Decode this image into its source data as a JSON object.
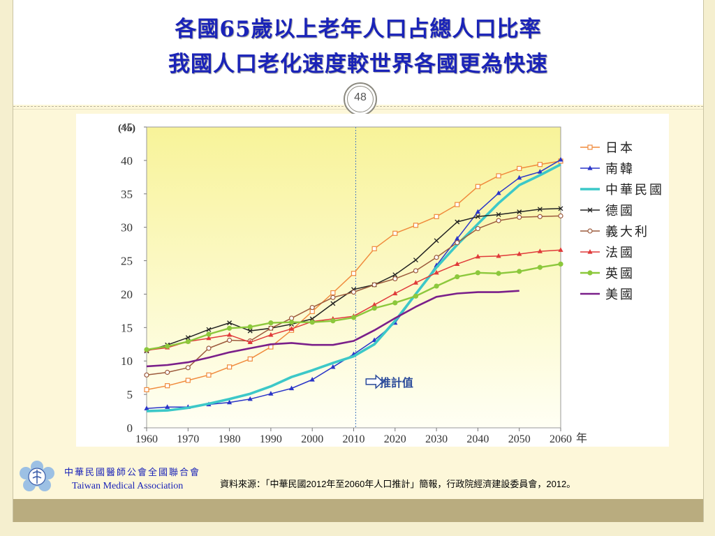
{
  "slide": {
    "title_line1": "各國65歲以上老年人口占總人口比率",
    "title_line2": "我國人口老化速度較世界各國更為快速",
    "page_number": "48"
  },
  "footer": {
    "org_zh": "中華民國醫師公會全國聯合會",
    "org_en": "Taiwan Medical Association",
    "source": "資料來源：「中華民國2012年至2060年人口推計」簡報，行政院經濟建設委員會，2012。"
  },
  "colors": {
    "title": "#1a23b8",
    "plot_gradient_top": "#f8f399",
    "plot_gradient_bottom": "#fffff4",
    "projection_line": "#4a7cc0",
    "footer_band": "#b9ac7f"
  },
  "chart_data": {
    "type": "line",
    "y_unit_label": "(%)",
    "x_unit_label": "年",
    "xlim": [
      1960,
      2060
    ],
    "ylim": [
      0,
      45
    ],
    "x_ticks": [
      1960,
      1970,
      1980,
      1990,
      2000,
      2010,
      2020,
      2030,
      2040,
      2050,
      2060
    ],
    "y_ticks": [
      0,
      5,
      10,
      15,
      20,
      25,
      30,
      35,
      40,
      45
    ],
    "grid": false,
    "legend_position": "right",
    "projection_start_year": 2010.5,
    "projection_label": "推計值",
    "series": [
      {
        "name": "日本",
        "color": "#f08a3c",
        "marker": "square",
        "x": [
          1960,
          1965,
          1970,
          1975,
          1980,
          1985,
          1990,
          1995,
          2000,
          2005,
          2010,
          2015,
          2020,
          2025,
          2030,
          2035,
          2040,
          2045,
          2050,
          2055,
          2060
        ],
        "y": [
          5.7,
          6.3,
          7.1,
          7.9,
          9.1,
          10.3,
          12.1,
          14.6,
          17.4,
          20.2,
          23.1,
          26.8,
          29.1,
          30.3,
          31.6,
          33.4,
          36.1,
          37.7,
          38.8,
          39.4,
          39.9
        ]
      },
      {
        "name": "南韓",
        "color": "#2a35c8",
        "marker": "triangle",
        "x": [
          1960,
          1965,
          1970,
          1975,
          1980,
          1985,
          1990,
          1995,
          2000,
          2005,
          2010,
          2015,
          2020,
          2025,
          2030,
          2035,
          2040,
          2045,
          2050,
          2055,
          2060
        ],
        "y": [
          2.9,
          3.1,
          3.1,
          3.5,
          3.8,
          4.3,
          5.1,
          5.9,
          7.2,
          9.1,
          11.0,
          13.1,
          15.7,
          19.9,
          24.3,
          28.3,
          32.3,
          35.1,
          37.4,
          38.3,
          40.1
        ]
      },
      {
        "name": "中華民國",
        "color": "#3cc8c8",
        "marker": "none",
        "x": [
          1960,
          1965,
          1970,
          1975,
          1980,
          1985,
          1990,
          1995,
          2000,
          2005,
          2010,
          2015,
          2020,
          2025,
          2030,
          2035,
          2040,
          2045,
          2050,
          2055,
          2060
        ],
        "y": [
          2.5,
          2.6,
          3.0,
          3.6,
          4.3,
          5.1,
          6.2,
          7.6,
          8.6,
          9.7,
          10.7,
          12.5,
          16.0,
          20.0,
          24.0,
          27.4,
          30.5,
          33.6,
          36.3,
          37.8,
          39.4
        ]
      },
      {
        "name": "德國",
        "color": "#222222",
        "marker": "x",
        "x": [
          1960,
          1965,
          1970,
          1975,
          1980,
          1985,
          1990,
          1995,
          2000,
          2005,
          2010,
          2015,
          2020,
          2025,
          2030,
          2035,
          2040,
          2045,
          2050,
          2055,
          2060
        ],
        "y": [
          11.5,
          12.4,
          13.5,
          14.7,
          15.7,
          14.5,
          14.9,
          15.5,
          16.3,
          18.6,
          20.7,
          21.4,
          22.9,
          25.1,
          28.0,
          30.8,
          31.6,
          31.9,
          32.3,
          32.7,
          32.8
        ]
      },
      {
        "name": "義大利",
        "color": "#9c5a3c",
        "marker": "circle",
        "x": [
          1960,
          1965,
          1970,
          1975,
          1980,
          1985,
          1990,
          1995,
          2000,
          2005,
          2010,
          2015,
          2020,
          2025,
          2030,
          2035,
          2040,
          2045,
          2050,
          2055,
          2060
        ],
        "y": [
          7.9,
          8.3,
          9.0,
          11.9,
          13.1,
          13.0,
          14.9,
          16.4,
          18.0,
          19.5,
          20.3,
          21.4,
          22.3,
          23.5,
          25.5,
          27.7,
          29.8,
          31.0,
          31.5,
          31.6,
          31.7
        ]
      },
      {
        "name": "法國",
        "color": "#e03a3a",
        "marker": "triangle",
        "x": [
          1960,
          1965,
          1970,
          1975,
          1980,
          1985,
          1990,
          1995,
          2000,
          2005,
          2010,
          2015,
          2020,
          2025,
          2030,
          2035,
          2040,
          2045,
          2050,
          2055,
          2060
        ],
        "y": [
          11.6,
          12.0,
          12.9,
          13.4,
          13.9,
          12.8,
          13.9,
          14.8,
          15.9,
          16.3,
          16.7,
          18.4,
          20.1,
          21.7,
          23.2,
          24.5,
          25.6,
          25.7,
          26.0,
          26.4,
          26.6
        ]
      },
      {
        "name": "英國",
        "color": "#8cc83c",
        "marker": "circle",
        "x": [
          1960,
          1965,
          1970,
          1975,
          1980,
          1985,
          1990,
          1995,
          2000,
          2005,
          2010,
          2015,
          2020,
          2025,
          2030,
          2035,
          2040,
          2045,
          2050,
          2055,
          2060
        ],
        "y": [
          11.7,
          12.2,
          12.9,
          14.0,
          14.9,
          15.1,
          15.7,
          15.8,
          15.8,
          16.0,
          16.5,
          17.9,
          18.7,
          19.7,
          21.2,
          22.6,
          23.2,
          23.1,
          23.4,
          24.0,
          24.5
        ]
      },
      {
        "name": "美國",
        "color": "#7a1f8a",
        "marker": "none",
        "x": [
          1960,
          1965,
          1970,
          1975,
          1980,
          1985,
          1990,
          1995,
          2000,
          2005,
          2010,
          2015,
          2020,
          2025,
          2030,
          2035,
          2040,
          2045,
          2050
        ],
        "y": [
          9.2,
          9.4,
          9.8,
          10.5,
          11.3,
          11.9,
          12.5,
          12.7,
          12.4,
          12.4,
          13.0,
          14.6,
          16.4,
          18.1,
          19.6,
          20.1,
          20.3,
          20.3,
          20.5
        ]
      }
    ]
  }
}
